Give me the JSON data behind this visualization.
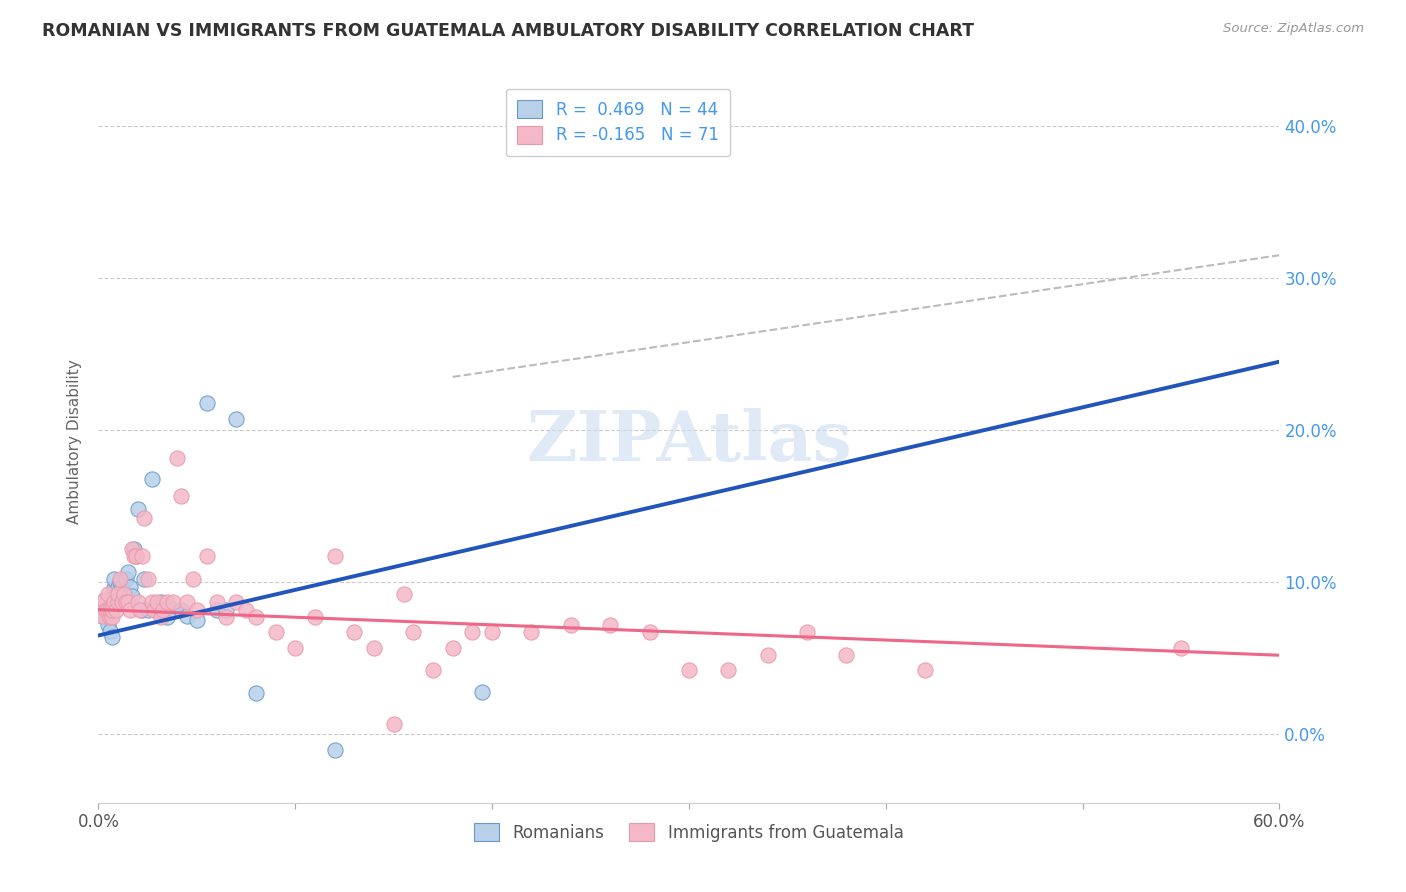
{
  "title": "ROMANIAN VS IMMIGRANTS FROM GUATEMALA AMBULATORY DISABILITY CORRELATION CHART",
  "source": "Source: ZipAtlas.com",
  "ylabel": "Ambulatory Disability",
  "yticks": [
    "0.0%",
    "10.0%",
    "20.0%",
    "30.0%",
    "40.0%"
  ],
  "ytick_vals": [
    0.0,
    0.1,
    0.2,
    0.3,
    0.4
  ],
  "xlim": [
    0.0,
    0.6
  ],
  "ylim": [
    -0.045,
    0.43
  ],
  "legend_r1": "R =  0.469   N = 44",
  "legend_r2": "R = -0.165   N = 71",
  "legend_label1": "Romanians",
  "legend_label2": "Immigrants from Guatemala",
  "watermark": "ZIPAtlas",
  "color_blue_fill": "#B8D0E8",
  "color_blue_edge": "#6699CC",
  "color_pink_fill": "#F4B8C8",
  "color_pink_edge": "#E899AA",
  "color_blue_line": "#2255BB",
  "color_pink_line": "#EE6688",
  "color_blue_text": "#4499EE",
  "color_dashed_line": "#BBBBBB",
  "color_grid": "#CCCCCC",
  "blue_x": [
    0.001,
    0.002,
    0.003,
    0.004,
    0.005,
    0.005,
    0.006,
    0.006,
    0.007,
    0.007,
    0.008,
    0.008,
    0.009,
    0.01,
    0.01,
    0.011,
    0.012,
    0.012,
    0.013,
    0.014,
    0.015,
    0.016,
    0.017,
    0.018,
    0.019,
    0.02,
    0.022,
    0.023,
    0.025,
    0.027,
    0.03,
    0.032,
    0.035,
    0.038,
    0.042,
    0.045,
    0.05,
    0.055,
    0.06,
    0.065,
    0.07,
    0.08,
    0.12,
    0.195
  ],
  "blue_y": [
    0.082,
    0.078,
    0.082,
    0.088,
    0.072,
    0.08,
    0.068,
    0.088,
    0.064,
    0.086,
    0.096,
    0.102,
    0.092,
    0.092,
    0.097,
    0.1,
    0.097,
    0.087,
    0.091,
    0.102,
    0.107,
    0.097,
    0.091,
    0.122,
    0.117,
    0.148,
    0.082,
    0.102,
    0.082,
    0.168,
    0.082,
    0.087,
    0.077,
    0.082,
    0.082,
    0.078,
    0.075,
    0.218,
    0.082,
    0.082,
    0.207,
    0.027,
    -0.01,
    0.028
  ],
  "pink_x": [
    0.001,
    0.002,
    0.002,
    0.003,
    0.004,
    0.005,
    0.005,
    0.006,
    0.006,
    0.007,
    0.007,
    0.008,
    0.009,
    0.01,
    0.01,
    0.011,
    0.012,
    0.013,
    0.014,
    0.015,
    0.016,
    0.017,
    0.018,
    0.019,
    0.02,
    0.021,
    0.022,
    0.023,
    0.025,
    0.027,
    0.028,
    0.03,
    0.032,
    0.033,
    0.035,
    0.038,
    0.04,
    0.042,
    0.045,
    0.048,
    0.05,
    0.055,
    0.06,
    0.065,
    0.07,
    0.075,
    0.08,
    0.09,
    0.1,
    0.11,
    0.12,
    0.13,
    0.14,
    0.15,
    0.155,
    0.16,
    0.17,
    0.18,
    0.19,
    0.2,
    0.22,
    0.24,
    0.26,
    0.28,
    0.3,
    0.32,
    0.34,
    0.36,
    0.38,
    0.42,
    0.55
  ],
  "pink_y": [
    0.082,
    0.078,
    0.085,
    0.088,
    0.082,
    0.082,
    0.092,
    0.077,
    0.082,
    0.077,
    0.082,
    0.087,
    0.082,
    0.087,
    0.092,
    0.102,
    0.087,
    0.092,
    0.087,
    0.087,
    0.082,
    0.122,
    0.117,
    0.117,
    0.087,
    0.082,
    0.117,
    0.142,
    0.102,
    0.087,
    0.082,
    0.087,
    0.077,
    0.082,
    0.087,
    0.087,
    0.182,
    0.157,
    0.087,
    0.102,
    0.082,
    0.117,
    0.087,
    0.077,
    0.087,
    0.082,
    0.077,
    0.067,
    0.057,
    0.077,
    0.117,
    0.067,
    0.057,
    0.007,
    0.092,
    0.067,
    0.042,
    0.057,
    0.067,
    0.067,
    0.067,
    0.072,
    0.072,
    0.067,
    0.042,
    0.042,
    0.052,
    0.067,
    0.052,
    0.042,
    0.057
  ],
  "blue_trendline_x": [
    0.0,
    0.6
  ],
  "blue_trendline_y": [
    0.065,
    0.245
  ],
  "pink_trendline_x": [
    0.0,
    0.6
  ],
  "pink_trendline_y": [
    0.082,
    0.052
  ],
  "dashed_trendline_x": [
    0.18,
    0.6
  ],
  "dashed_trendline_y": [
    0.235,
    0.315
  ]
}
